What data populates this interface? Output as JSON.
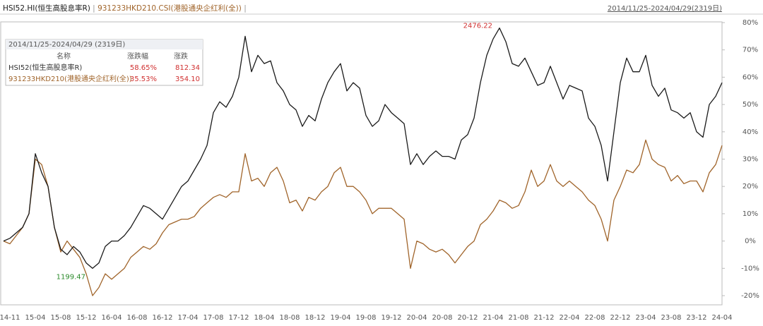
{
  "chart_data": {
    "type": "line",
    "header_range": "2014/11/25-2024/04/29(2319日)",
    "x": [
      "14-11",
      null,
      null,
      null,
      null,
      "15-04",
      null,
      null,
      null,
      "15-08",
      null,
      null,
      null,
      "15-12",
      null,
      null,
      null,
      "16-04",
      null,
      null,
      null,
      "16-08",
      null,
      null,
      null,
      "16-12",
      null,
      null,
      null,
      "17-04",
      null,
      null,
      null,
      "17-08",
      null,
      null,
      null,
      "17-12",
      null,
      null,
      null,
      "18-04",
      null,
      null,
      null,
      "18-08",
      null,
      null,
      null,
      "18-12",
      null,
      null,
      null,
      "19-04",
      null,
      null,
      null,
      "19-08",
      null,
      null,
      null,
      "19-12",
      null,
      null,
      null,
      "20-04",
      null,
      null,
      null,
      "20-08",
      null,
      null,
      null,
      "20-12",
      null,
      null,
      null,
      "21-04",
      null,
      null,
      null,
      "21-08",
      null,
      null,
      null,
      "21-12",
      null,
      null,
      null,
      "22-04",
      null,
      null,
      null,
      "22-08",
      null,
      null,
      null,
      "22-12",
      null,
      null,
      null,
      "23-04",
      null,
      null,
      null,
      "23-08",
      null,
      null,
      null,
      "23-12",
      null,
      null,
      null,
      "24-04"
    ],
    "series": [
      {
        "name": "HSI52.HI(恒生高股息率R)",
        "color": "#1a1a1a",
        "values": [
          0,
          1,
          3,
          5,
          10,
          32,
          25,
          20,
          5,
          -3,
          -5,
          -2,
          -4,
          -8,
          -10,
          -8,
          -2,
          0,
          0,
          2,
          5,
          9,
          13,
          12,
          10,
          8,
          12,
          16,
          20,
          22,
          26,
          30,
          35,
          47,
          51,
          49,
          53,
          60,
          75,
          62,
          68,
          65,
          66,
          58,
          55,
          50,
          48,
          42,
          46,
          44,
          52,
          58,
          62,
          65,
          55,
          58,
          56,
          46,
          42,
          44,
          50,
          47,
          45,
          43,
          28,
          32,
          28,
          31,
          33,
          31,
          31,
          30,
          37,
          39,
          45,
          58,
          68,
          74,
          78,
          73,
          65,
          64,
          67,
          62,
          57,
          58,
          64,
          58,
          52,
          57,
          56,
          55,
          45,
          42,
          35,
          22,
          40,
          58,
          67,
          62,
          62,
          68,
          57,
          53,
          56,
          48,
          47,
          45,
          47,
          40,
          38,
          50,
          53,
          58
        ]
      },
      {
        "name": "931233HKD210.CSI(港股通央企红利(全))",
        "color": "#a0642a",
        "values": [
          0,
          -1,
          2,
          5,
          10,
          30,
          28,
          20,
          5,
          -4,
          0,
          -3,
          -6,
          -12,
          -20,
          -17,
          -12,
          -14,
          -12,
          -10,
          -6,
          -4,
          -2,
          -3,
          -1,
          3,
          6,
          7,
          8,
          8,
          9,
          12,
          14,
          16,
          17,
          16,
          18,
          18,
          32,
          22,
          23,
          20,
          25,
          27,
          22,
          14,
          15,
          11,
          16,
          15,
          18,
          20,
          25,
          27,
          20,
          20,
          18,
          15,
          10,
          12,
          12,
          12,
          10,
          8,
          -10,
          0,
          -1,
          -3,
          -4,
          -3,
          -5,
          -8,
          -5,
          -2,
          0,
          6,
          8,
          11,
          15,
          14,
          12,
          13,
          18,
          26,
          20,
          22,
          28,
          22,
          20,
          22,
          20,
          18,
          15,
          13,
          8,
          0,
          15,
          20,
          26,
          25,
          28,
          37,
          30,
          28,
          27,
          22,
          24,
          21,
          22,
          22,
          18,
          25,
          28,
          35
        ]
      }
    ],
    "annotations": [
      {
        "text": "2476.22",
        "color": "#d03030"
      },
      {
        "text": "1199.47",
        "color": "#2a8a2a"
      }
    ],
    "ylim": [
      -20,
      80
    ],
    "yticks": [
      {
        "value": 80,
        "label": "80%"
      },
      {
        "value": 70,
        "label": "70%"
      },
      {
        "value": 60,
        "label": "60%"
      },
      {
        "value": 50,
        "label": "50%"
      },
      {
        "value": 40,
        "label": "40%"
      },
      {
        "value": 30,
        "label": "30%"
      },
      {
        "value": 20,
        "label": "20%"
      },
      {
        "value": 10,
        "label": "10%"
      },
      {
        "value": 0,
        "label": "0%"
      },
      {
        "value": -10,
        "label": "-10%"
      },
      {
        "value": -20,
        "label": "-20%"
      }
    ],
    "info_box": {
      "title": "2014/11/25-2024/04/29 (2319日)",
      "headers": [
        "名称",
        "涨跌幅",
        "涨跌"
      ],
      "rows": [
        [
          "HSI52(恒生高股息率R)",
          "58.65%",
          "812.34"
        ],
        [
          "931233HKD210(港股通央企红利(全))",
          "35.53%",
          "354.10"
        ]
      ]
    }
  }
}
